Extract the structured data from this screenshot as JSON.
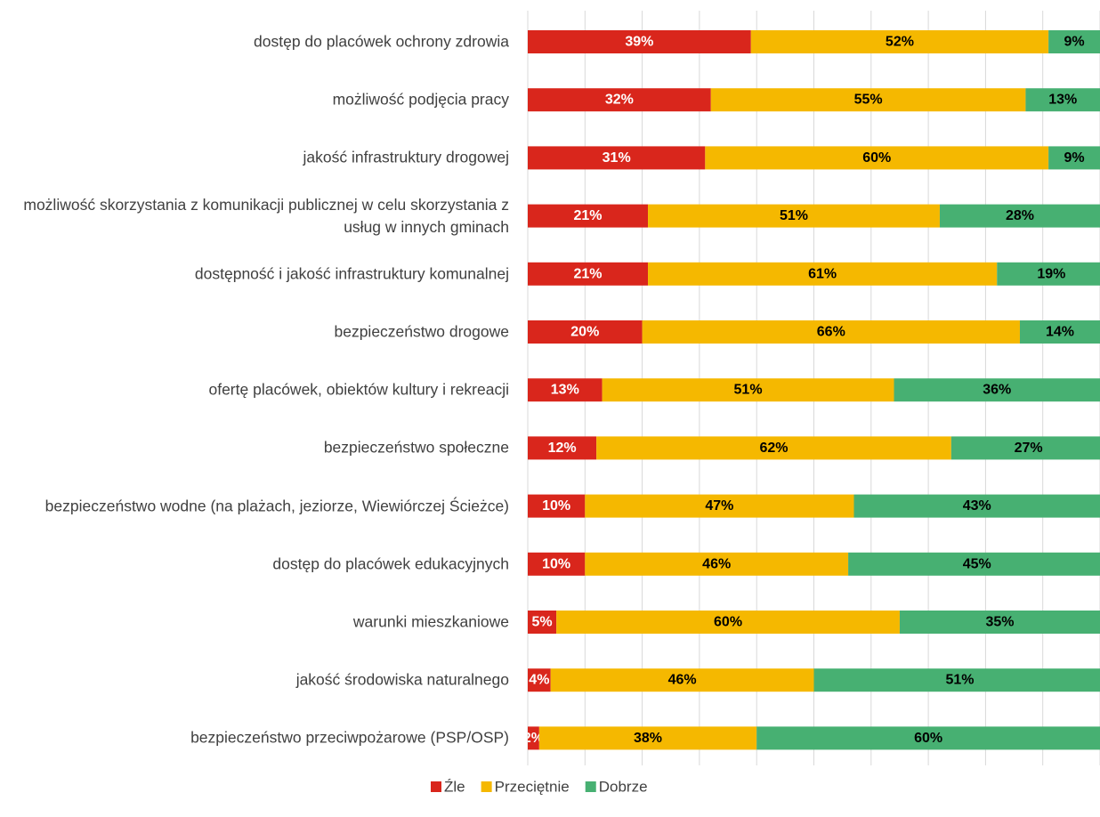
{
  "chart_data": {
    "type": "stacked_bar_horizontal",
    "categories": [
      "dostęp do placówek ochrony zdrowia",
      "możliwość podjęcia pracy",
      "jakość infrastruktury drogowej",
      "możliwość skorzystania z komunikacji publicznej w celu skorzystania z usług w innych gminach",
      "dostępność i jakość infrastruktury komunalnej",
      "bezpieczeństwo drogowe",
      "ofertę placówek, obiektów  kultury i rekreacji",
      "bezpieczeństwo społeczne",
      "bezpieczeństwo wodne (na plażach, jeziorze, Wiewiórczej Ścieżce)",
      "dostęp do placówek edukacyjnych",
      "warunki mieszkaniowe",
      "jakość środowiska naturalnego",
      "bezpieczeństwo przeciwpożarowe (PSP/OSP)"
    ],
    "series": [
      {
        "name": "Źle",
        "color": "#d9261c",
        "values": [
          39,
          32,
          31,
          21,
          21,
          20,
          13,
          12,
          10,
          10,
          5,
          4,
          2
        ],
        "value_labels": [
          "39%",
          "32%",
          "31%",
          "21%",
          "21%",
          "20%",
          "13%",
          "12%",
          "10%",
          "10%",
          "5%",
          "4%",
          "2%"
        ]
      },
      {
        "name": "Przeciętnie",
        "color": "#f5b800",
        "values": [
          52,
          55,
          60,
          51,
          61,
          66,
          51,
          62,
          47,
          46,
          60,
          46,
          38
        ],
        "value_labels": [
          "52%",
          "55%",
          "60%",
          "51%",
          "61%",
          "66%",
          "51%",
          "62%",
          "47%",
          "46%",
          "60%",
          "46%",
          "38%"
        ]
      },
      {
        "name": "Dobrze",
        "color": "#47b072",
        "values": [
          9,
          13,
          9,
          28,
          19,
          14,
          36,
          27,
          43,
          45,
          35,
          51,
          60
        ],
        "value_labels": [
          "9%",
          "13%",
          "9%",
          "28%",
          "19%",
          "14%",
          "36%",
          "27%",
          "43%",
          "45%",
          "35%",
          "51%",
          "60%"
        ]
      }
    ],
    "xlim": [
      0,
      100
    ],
    "xticks": [
      0,
      10,
      20,
      30,
      40,
      50,
      60,
      70,
      80,
      90,
      100
    ],
    "grid": true,
    "legend": "bottom"
  }
}
